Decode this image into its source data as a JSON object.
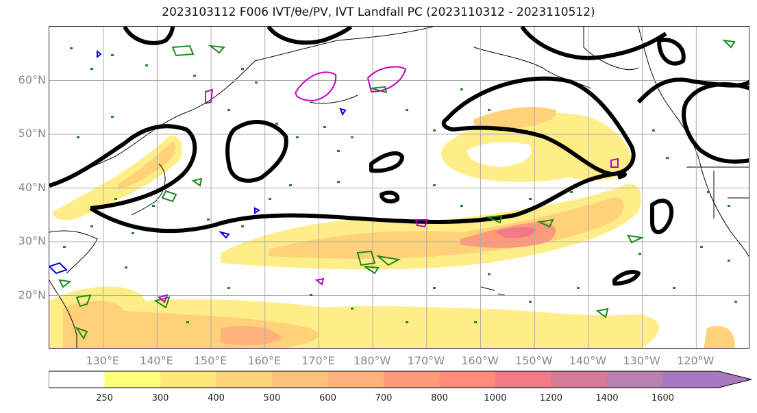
{
  "title": "2023103112 F006 IVT/θe/PV, IVT Landfall PC (2023110312 - 2023110512)",
  "map": {
    "lat_labels": [
      {
        "text": "60°N",
        "lat": 60
      },
      {
        "text": "50°N",
        "lat": 50
      },
      {
        "text": "40°N",
        "lat": 40
      },
      {
        "text": "30°N",
        "lat": 30
      },
      {
        "text": "20°N",
        "lat": 20
      }
    ],
    "lon_labels": [
      {
        "text": "130°E",
        "lon": 130
      },
      {
        "text": "140°E",
        "lon": 140
      },
      {
        "text": "150°E",
        "lon": 150
      },
      {
        "text": "160°E",
        "lon": 160
      },
      {
        "text": "170°E",
        "lon": 170
      },
      {
        "text": "180°W",
        "lon": 180
      },
      {
        "text": "170°W",
        "lon": 190
      },
      {
        "text": "160°W",
        "lon": 200
      },
      {
        "text": "150°W",
        "lon": 210
      },
      {
        "text": "140°W",
        "lon": 220
      },
      {
        "text": "130°W",
        "lon": 230
      },
      {
        "text": "120°W",
        "lon": 240
      }
    ],
    "lon_range": [
      120,
      250
    ],
    "lat_range": [
      10,
      70
    ],
    "grid": true
  },
  "colorbar": {
    "levels": [
      250,
      300,
      400,
      500,
      600,
      700,
      800,
      1000,
      1200,
      1400,
      1600
    ],
    "colors": [
      "#ffffff",
      "#ffff7a",
      "#ffe87a",
      "#ffd27a",
      "#ffc27a",
      "#ffb27a",
      "#ff9a7a",
      "#ff8a7a",
      "#f07a88",
      "#d67a96",
      "#b880b0",
      "#a878c0"
    ],
    "extend": "max"
  },
  "colors": {
    "contour_black": "#000000",
    "contour_green": "#1a8a1a",
    "contour_magenta": "#c000c0",
    "contour_blue": "#0000ee",
    "coast": "#000000",
    "grid": "#aaaaaa"
  }
}
